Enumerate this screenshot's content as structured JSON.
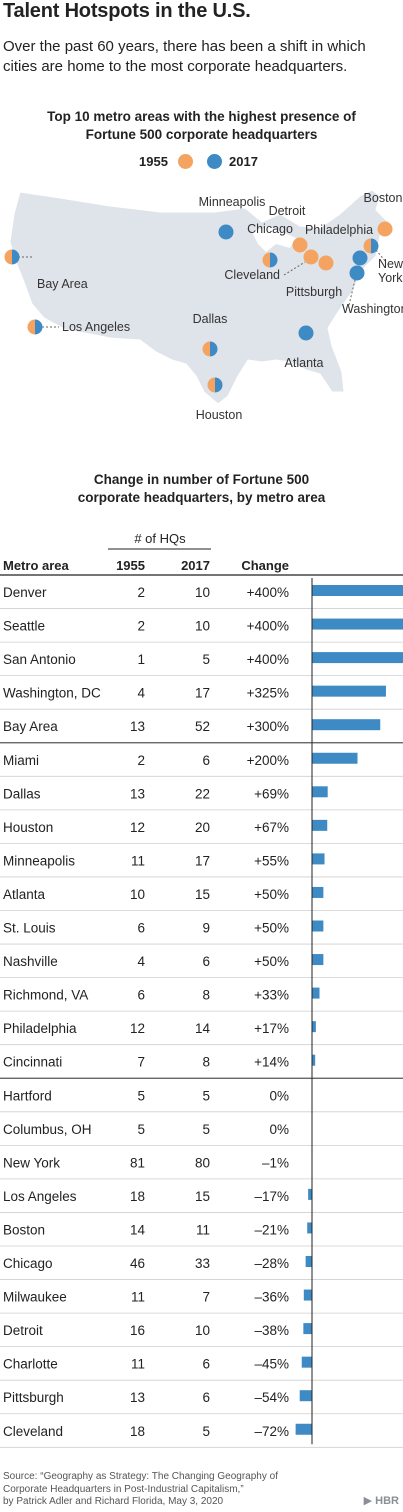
{
  "header": {
    "title": "Talent Hotspots in the U.S.",
    "subtitle": "Over the past 60 years, there has been a shift in which cities are home to the most corporate headquarters."
  },
  "map_section": {
    "title_line1": "Top 10 metro areas with the highest presence of",
    "title_line2": "Fortune 500 corporate headquarters",
    "legend_1955": "1955",
    "legend_2017": "2017",
    "color_1955": "#f4a460",
    "color_2017": "#3d8ac4",
    "cities": [
      {
        "name": "Minneapolis",
        "dot": "2017"
      },
      {
        "name": "Chicago",
        "dot": "both"
      },
      {
        "name": "Detroit",
        "dot": "1955"
      },
      {
        "name": "Cleveland",
        "dot": "1955"
      },
      {
        "name": "Pittsburgh",
        "dot": "1955"
      },
      {
        "name": "Boston",
        "dot": "1955"
      },
      {
        "name": "Philadelphia",
        "dot": "2017"
      },
      {
        "name": "New York",
        "dot": "both"
      },
      {
        "name": "Washington, DC",
        "dot": "2017"
      },
      {
        "name": "Bay Area",
        "dot": "both"
      },
      {
        "name": "Los Angeles",
        "dot": "both"
      },
      {
        "name": "Dallas",
        "dot": "both"
      },
      {
        "name": "Houston",
        "dot": "both"
      },
      {
        "name": "Atlanta",
        "dot": "2017"
      }
    ]
  },
  "chart_data": {
    "type": "table",
    "title_line1": "Change in number of Fortune 500",
    "title_line2": "corporate headquarters, by metro area",
    "group_header": "# of HQs",
    "columns": [
      "Metro area",
      "1955",
      "2017",
      "Change"
    ],
    "bar_color": "#3d8ac4",
    "rows": [
      {
        "metro": "Denver",
        "y1955": "2",
        "y2017": "10",
        "change": "+400%",
        "pct": 400
      },
      {
        "metro": "Seattle",
        "y1955": "2",
        "y2017": "10",
        "change": "+400%",
        "pct": 400
      },
      {
        "metro": "San Antonio",
        "y1955": "1",
        "y2017": "5",
        "change": "+400%",
        "pct": 400
      },
      {
        "metro": "Washington, DC",
        "y1955": "4",
        "y2017": "17",
        "change": "+325%",
        "pct": 325
      },
      {
        "metro": "Bay Area",
        "y1955": "13",
        "y2017": "52",
        "change": "+300%",
        "pct": 300
      },
      {
        "metro": "Miami",
        "y1955": "2",
        "y2017": "6",
        "change": "+200%",
        "pct": 200
      },
      {
        "metro": "Dallas",
        "y1955": "13",
        "y2017": "22",
        "change": "+69%",
        "pct": 69
      },
      {
        "metro": "Houston",
        "y1955": "12",
        "y2017": "20",
        "change": "+67%",
        "pct": 67
      },
      {
        "metro": "Minneapolis",
        "y1955": "11",
        "y2017": "17",
        "change": "+55%",
        "pct": 55
      },
      {
        "metro": "Atlanta",
        "y1955": "10",
        "y2017": "15",
        "change": "+50%",
        "pct": 50
      },
      {
        "metro": "St. Louis",
        "y1955": "6",
        "y2017": "9",
        "change": "+50%",
        "pct": 50
      },
      {
        "metro": "Nashville",
        "y1955": "4",
        "y2017": "6",
        "change": "+50%",
        "pct": 50
      },
      {
        "metro": "Richmond, VA",
        "y1955": "6",
        "y2017": "8",
        "change": "+33%",
        "pct": 33
      },
      {
        "metro": "Philadelphia",
        "y1955": "12",
        "y2017": "14",
        "change": "+17%",
        "pct": 17
      },
      {
        "metro": "Cincinnati",
        "y1955": "7",
        "y2017": "8",
        "change": "+14%",
        "pct": 14
      },
      {
        "metro": "Hartford",
        "y1955": "5",
        "y2017": "5",
        "change": "0%",
        "pct": 0
      },
      {
        "metro": "Columbus, OH",
        "y1955": "5",
        "y2017": "5",
        "change": "0%",
        "pct": 0
      },
      {
        "metro": "New York",
        "y1955": "81",
        "y2017": "80",
        "change": "–1%",
        "pct": -1
      },
      {
        "metro": "Los Angeles",
        "y1955": "18",
        "y2017": "15",
        "change": "–17%",
        "pct": -17
      },
      {
        "metro": "Boston",
        "y1955": "14",
        "y2017": "11",
        "change": "–21%",
        "pct": -21
      },
      {
        "metro": "Chicago",
        "y1955": "46",
        "y2017": "33",
        "change": "–28%",
        "pct": -28
      },
      {
        "metro": "Milwaukee",
        "y1955": "11",
        "y2017": "7",
        "change": "–36%",
        "pct": -36
      },
      {
        "metro": "Detroit",
        "y1955": "16",
        "y2017": "10",
        "change": "–38%",
        "pct": -38
      },
      {
        "metro": "Charlotte",
        "y1955": "11",
        "y2017": "6",
        "change": "–45%",
        "pct": -45
      },
      {
        "metro": "Pittsburgh",
        "y1955": "13",
        "y2017": "6",
        "change": "–54%",
        "pct": -54
      },
      {
        "metro": "Cleveland",
        "y1955": "18",
        "y2017": "5",
        "change": "–72%",
        "pct": -72
      }
    ]
  },
  "footer": {
    "source_line1": "Source: “Geography as Strategy: The Changing Geography of",
    "source_line2": "Corporate Headquarters in Post-Industrial Capitalism,”",
    "source_line3": "by Patrick Adler and Richard Florida, May 3, 2020",
    "logo": "HBR"
  }
}
